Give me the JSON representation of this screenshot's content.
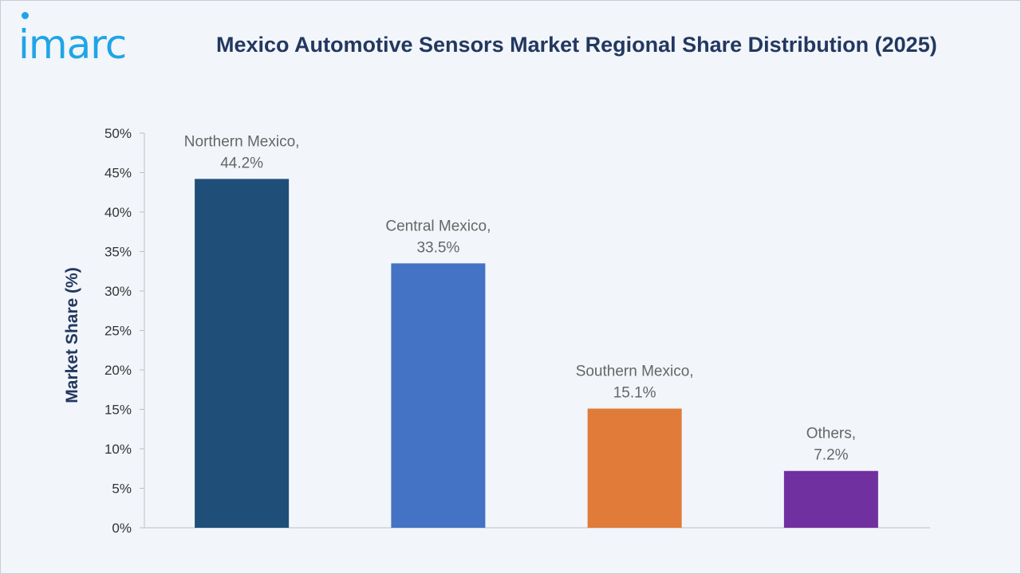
{
  "brand": {
    "logo_text": "imarc"
  },
  "chart_data": {
    "type": "bar",
    "title": "Mexico Automotive Sensors Market Regional Share Distribution (2025)",
    "ylabel": "Market Share (%)",
    "xlabel": "",
    "categories": [
      "Northern Mexico",
      "Central Mexico",
      "Southern Mexico",
      "Others"
    ],
    "values": [
      44.2,
      33.5,
      15.1,
      7.2
    ],
    "data_labels": [
      [
        "Northern Mexico,",
        "44.2%"
      ],
      [
        "Central Mexico,",
        "33.5%"
      ],
      [
        "Southern Mexico,",
        "15.1%"
      ],
      [
        "Others,",
        "7.2%"
      ]
    ],
    "bar_colors": [
      "#1f4e79",
      "#4472c4",
      "#e07b39",
      "#7030a0"
    ],
    "ylim": [
      0,
      50
    ],
    "yticks": [
      0,
      5,
      10,
      15,
      20,
      25,
      30,
      35,
      40,
      45,
      50
    ],
    "ytick_labels": [
      "0%",
      "5%",
      "10%",
      "15%",
      "20%",
      "25%",
      "30%",
      "35%",
      "40%",
      "45%",
      "50%"
    ],
    "grid": false,
    "legend": "none"
  }
}
